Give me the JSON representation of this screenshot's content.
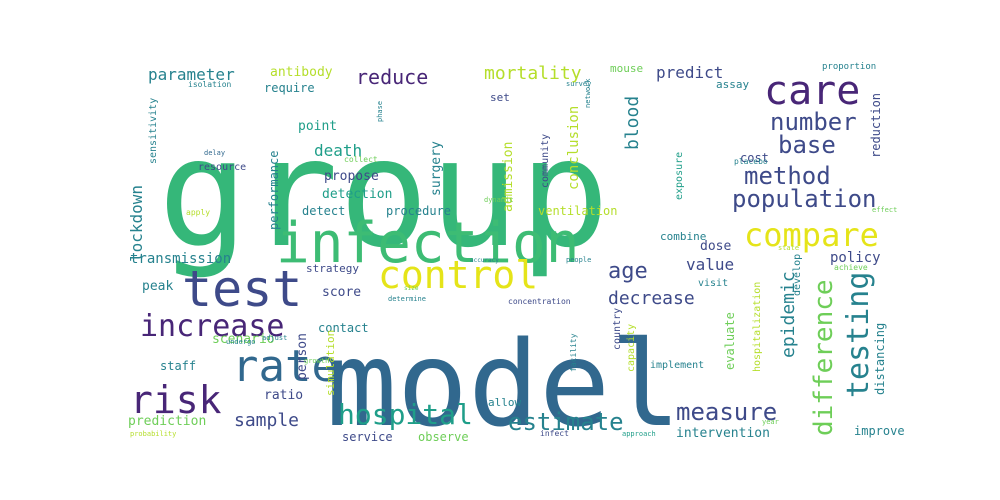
{
  "palette": {
    "dark_purple": "#482677",
    "indigo": "#3e4a89",
    "steel_blue": "#31688e",
    "teal": "#26828e",
    "sea_green": "#1f9e89",
    "green": "#35b779",
    "mid_green": "#3dbc74",
    "lime": "#6ece58",
    "yellow_green": "#b5de2b",
    "yellow": "#e5e419"
  },
  "words": [
    {
      "text": "group"
    },
    {
      "text": "model"
    },
    {
      "text": "infection"
    },
    {
      "text": "test"
    },
    {
      "text": "control"
    },
    {
      "text": "compare"
    },
    {
      "text": "care"
    },
    {
      "text": "rate"
    },
    {
      "text": "risk"
    },
    {
      "text": "increase"
    },
    {
      "text": "hospital"
    },
    {
      "text": "testing"
    },
    {
      "text": "difference"
    },
    {
      "text": "measure"
    },
    {
      "text": "estimate"
    },
    {
      "text": "population"
    },
    {
      "text": "method"
    },
    {
      "text": "number"
    },
    {
      "text": "base"
    },
    {
      "text": "epidemic"
    },
    {
      "text": "reduce"
    },
    {
      "text": "age"
    },
    {
      "text": "decrease"
    },
    {
      "text": "mortality"
    },
    {
      "text": "predict"
    },
    {
      "text": "parameter"
    },
    {
      "text": "sample"
    },
    {
      "text": "lockdown"
    },
    {
      "text": "blood"
    },
    {
      "text": "death"
    },
    {
      "text": "value"
    },
    {
      "text": "conclusion"
    },
    {
      "text": "policy"
    },
    {
      "text": "transmission"
    },
    {
      "text": "antibody"
    },
    {
      "text": "score"
    },
    {
      "text": "peak"
    },
    {
      "text": "surgery"
    },
    {
      "text": "admission"
    },
    {
      "text": "performance"
    },
    {
      "text": "point"
    },
    {
      "text": "propose"
    },
    {
      "text": "detection"
    },
    {
      "text": "detect"
    },
    {
      "text": "procedure"
    },
    {
      "text": "ventilation"
    },
    {
      "text": "dose"
    },
    {
      "text": "combine"
    },
    {
      "text": "cost"
    },
    {
      "text": "reduction"
    },
    {
      "text": "exposure"
    },
    {
      "text": "person"
    },
    {
      "text": "ratio"
    },
    {
      "text": "scenario"
    },
    {
      "text": "staff"
    },
    {
      "text": "prediction"
    },
    {
      "text": "contact"
    },
    {
      "text": "strategy"
    },
    {
      "text": "service"
    },
    {
      "text": "observe"
    },
    {
      "text": "intervention"
    },
    {
      "text": "improve"
    },
    {
      "text": "distancing"
    },
    {
      "text": "hospitalization"
    },
    {
      "text": "evaluate"
    },
    {
      "text": "capacity"
    },
    {
      "text": "implement"
    },
    {
      "text": "visit"
    },
    {
      "text": "develop"
    },
    {
      "text": "allow"
    },
    {
      "text": "simulation"
    },
    {
      "text": "require"
    },
    {
      "text": "set"
    },
    {
      "text": "mouse"
    },
    {
      "text": "assay"
    },
    {
      "text": "proportion"
    },
    {
      "text": "community"
    },
    {
      "text": "resource"
    },
    {
      "text": "sensitivity"
    },
    {
      "text": "isolation"
    },
    {
      "text": "delay"
    },
    {
      "text": "collect"
    },
    {
      "text": "apply"
    },
    {
      "text": "dynamic"
    },
    {
      "text": "placebo"
    },
    {
      "text": "effect"
    },
    {
      "text": "state"
    },
    {
      "text": "achieve"
    },
    {
      "text": "people"
    },
    {
      "text": "concentration"
    },
    {
      "text": "growth"
    },
    {
      "text": "facility"
    },
    {
      "text": "adjust"
    },
    {
      "text": "undergo"
    },
    {
      "text": "probability"
    },
    {
      "text": "approach"
    },
    {
      "text": "infect"
    },
    {
      "text": "country"
    },
    {
      "text": "determine"
    },
    {
      "text": "accuracy"
    },
    {
      "text": "phase"
    },
    {
      "text": "size"
    },
    {
      "text": "network"
    },
    {
      "text": "survey"
    },
    {
      "text": "year"
    }
  ]
}
